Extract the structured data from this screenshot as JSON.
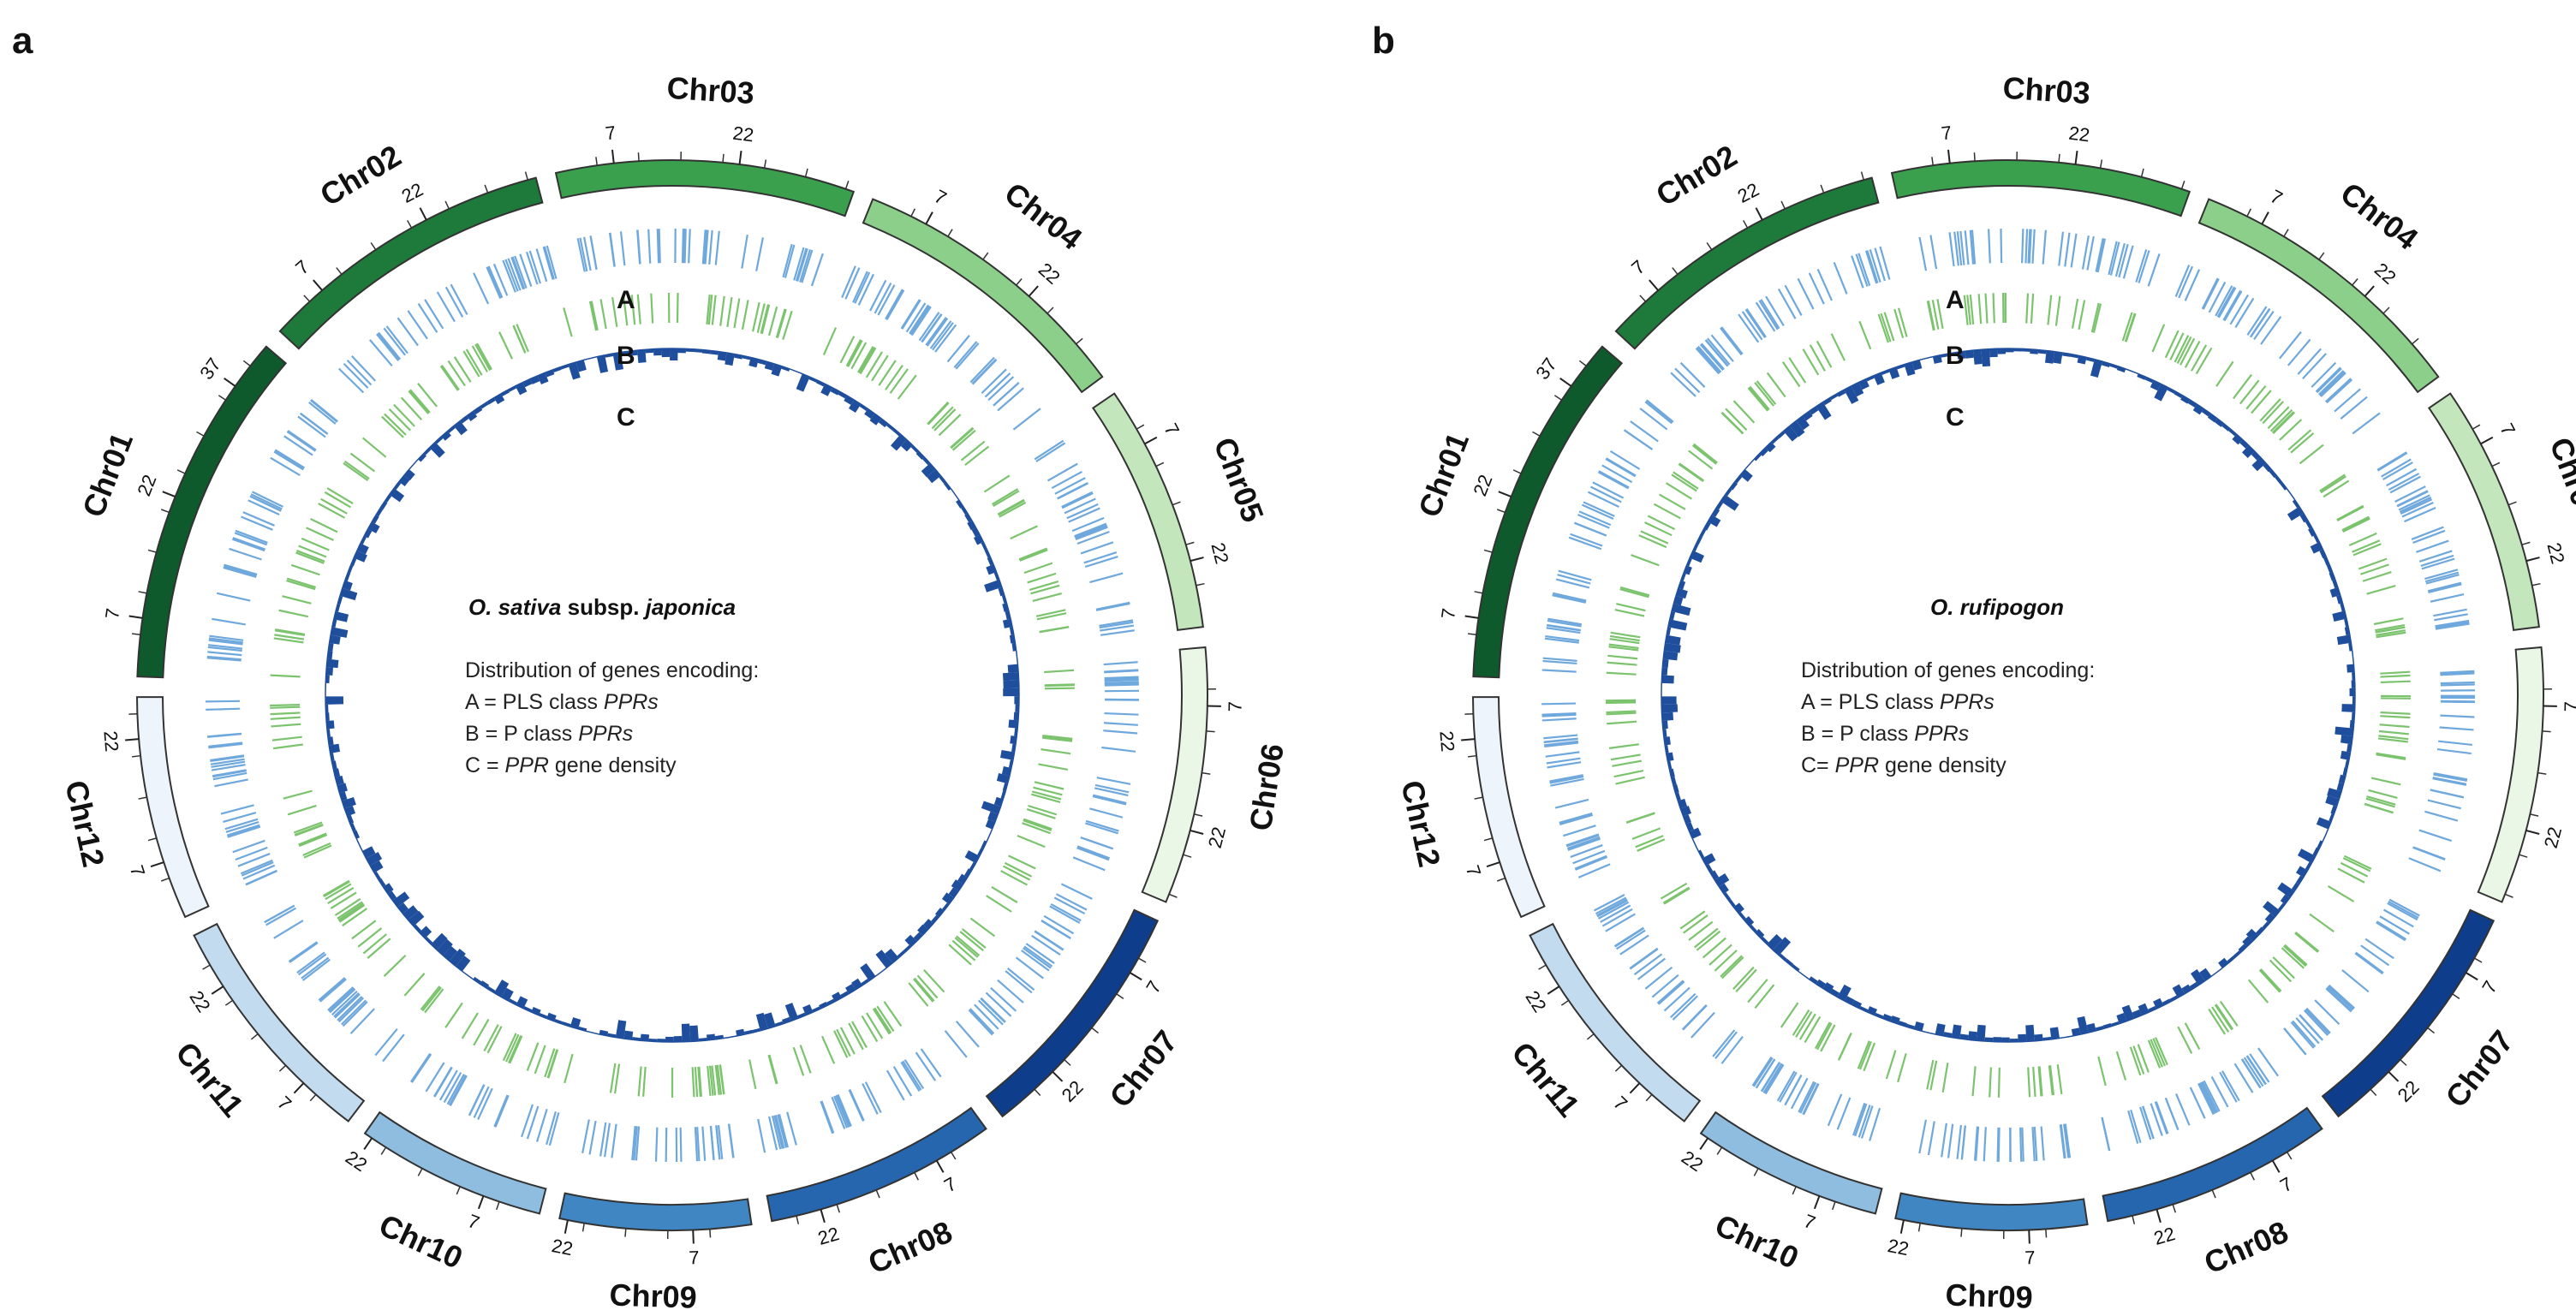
{
  "colors": {
    "pls": "#6fa8dc",
    "p": "#7cc36e",
    "density": "#1f4e9c",
    "chr_stroke": "#333333"
  },
  "panels": [
    {
      "letter": "a",
      "title_italic": "O. sativa",
      "title_rest": " subsp. ",
      "title_italic2": "japonica",
      "legend_heading": "Distribution of genes encoding:",
      "legend_a_prefix": "A = PLS class ",
      "legend_a_italic": "PPRs",
      "legend_b_prefix": "B = P class ",
      "legend_b_italic": "PPRs",
      "legend_c_prefix": "C = ",
      "legend_c_italic": "PPR",
      "legend_c_suffix": " gene density",
      "track_letters": [
        "A",
        "B",
        "C"
      ]
    },
    {
      "letter": "b",
      "title_italic": "O. rufipogon",
      "title_rest": "",
      "title_italic2": "",
      "legend_heading": "Distribution of genes encoding:",
      "legend_a_prefix": "A = PLS class ",
      "legend_a_italic": "PPRs",
      "legend_b_prefix": "B = P class ",
      "legend_b_italic": "PPRs",
      "legend_c_prefix": "C= ",
      "legend_c_italic": "PPR",
      "legend_c_suffix": " gene density",
      "track_letters": [
        "A",
        "B",
        "C"
      ]
    }
  ],
  "chromosomes": [
    {
      "name": "Chr01",
      "size_mb": 43,
      "color": "#0e5a2c",
      "ticks": [
        "7",
        "22",
        "37"
      ]
    },
    {
      "name": "Chr02",
      "size_mb": 36,
      "color": "#1e7a3a",
      "ticks": [
        "7",
        "22"
      ]
    },
    {
      "name": "Chr03",
      "size_mb": 36,
      "color": "#3aa04e",
      "ticks": [
        "7",
        "22"
      ]
    },
    {
      "name": "Chr04",
      "size_mb": 35,
      "color": "#8ccf8a",
      "ticks": [
        "7",
        "22"
      ]
    },
    {
      "name": "Chr05",
      "size_mb": 30,
      "color": "#c3e6bd",
      "ticks": [
        "7",
        "22"
      ]
    },
    {
      "name": "Chr06",
      "size_mb": 31,
      "color": "#eaf6e6",
      "ticks": [
        "7",
        "22"
      ]
    },
    {
      "name": "Chr07",
      "size_mb": 30,
      "color": "#0e3d8c",
      "ticks": [
        "7",
        "22"
      ]
    },
    {
      "name": "Chr08",
      "size_mb": 28,
      "color": "#2566ae",
      "ticks": [
        "7",
        "22"
      ]
    },
    {
      "name": "Chr09",
      "size_mb": 23,
      "color": "#3f86c3",
      "ticks": [
        "7",
        "22"
      ]
    },
    {
      "name": "Chr10",
      "size_mb": 23,
      "color": "#8fbde0",
      "ticks": [
        "7",
        "22"
      ]
    },
    {
      "name": "Chr11",
      "size_mb": 29,
      "color": "#c3dbef",
      "ticks": [
        "7",
        "22"
      ]
    },
    {
      "name": "Chr12",
      "size_mb": 27,
      "color": "#eef4fb",
      "ticks": [
        "7",
        "22"
      ]
    }
  ]
}
